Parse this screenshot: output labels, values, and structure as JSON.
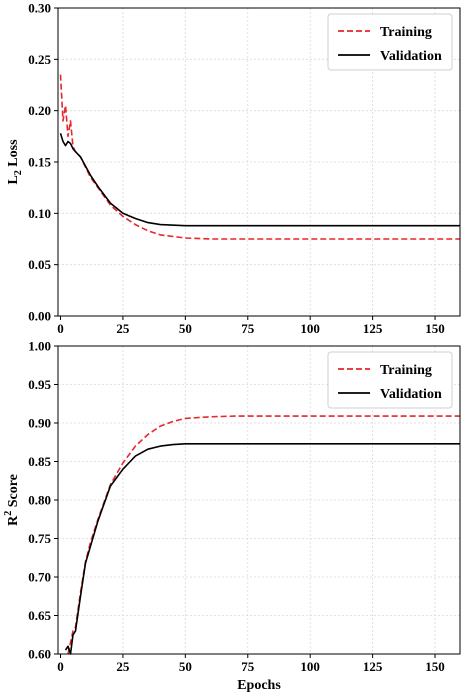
{
  "chart_data": [
    {
      "type": "line",
      "title": "",
      "xlabel": "",
      "ylabel_main": "L",
      "ylabel_sub": "2",
      "ylabel_rest": " Loss",
      "xlim": [
        -1,
        160
      ],
      "ylim": [
        0.0,
        0.3
      ],
      "xticks": [
        0,
        25,
        50,
        75,
        100,
        125,
        150
      ],
      "xtick_labels": [
        "0",
        "25",
        "50",
        "75",
        "100",
        "125",
        "150"
      ],
      "yticks": [
        0.0,
        0.05,
        0.1,
        0.15,
        0.2,
        0.25,
        0.3
      ],
      "ytick_labels": [
        "0.00",
        "0.05",
        "0.10",
        "0.15",
        "0.20",
        "0.25",
        "0.30"
      ],
      "grid": true,
      "legend_position": "top-right",
      "series": [
        {
          "name": "Training",
          "color": "#e8262b",
          "style": "dashed",
          "x": [
            0,
            1,
            2,
            3,
            4,
            5,
            6,
            8,
            10,
            12,
            15,
            20,
            25,
            30,
            35,
            40,
            50,
            60,
            70,
            100,
            160
          ],
          "y": [
            0.235,
            0.19,
            0.205,
            0.175,
            0.19,
            0.165,
            0.16,
            0.155,
            0.145,
            0.135,
            0.125,
            0.108,
            0.097,
            0.089,
            0.083,
            0.079,
            0.076,
            0.075,
            0.075,
            0.075,
            0.075
          ]
        },
        {
          "name": "Validation",
          "color": "#000000",
          "style": "solid",
          "x": [
            0,
            1,
            2,
            3,
            4,
            5,
            6,
            8,
            10,
            12,
            15,
            20,
            25,
            30,
            35,
            40,
            50,
            60,
            70,
            100,
            160
          ],
          "y": [
            0.178,
            0.17,
            0.166,
            0.17,
            0.168,
            0.163,
            0.16,
            0.155,
            0.146,
            0.137,
            0.126,
            0.11,
            0.1,
            0.095,
            0.091,
            0.089,
            0.088,
            0.088,
            0.088,
            0.088,
            0.088
          ]
        }
      ]
    },
    {
      "type": "line",
      "title": "",
      "xlabel": "Epochs",
      "ylabel_main": "R",
      "ylabel_sup": "2",
      "ylabel_rest": " Score",
      "xlim": [
        -1,
        160
      ],
      "ylim": [
        0.6,
        1.0
      ],
      "xticks": [
        0,
        25,
        50,
        75,
        100,
        125,
        150
      ],
      "xtick_labels": [
        "0",
        "25",
        "50",
        "75",
        "100",
        "125",
        "150"
      ],
      "yticks": [
        0.6,
        0.65,
        0.7,
        0.75,
        0.8,
        0.85,
        0.9,
        0.95,
        1.0
      ],
      "ytick_labels": [
        "0.60",
        "0.65",
        "0.70",
        "0.75",
        "0.80",
        "0.85",
        "0.90",
        "0.95",
        "1.00"
      ],
      "grid": true,
      "legend_position": "top-right",
      "series": [
        {
          "name": "Training",
          "color": "#e8262b",
          "style": "dashed",
          "x": [
            3,
            4,
            5,
            6,
            8,
            10,
            12,
            15,
            20,
            25,
            30,
            35,
            40,
            45,
            50,
            60,
            70,
            100,
            160
          ],
          "y": [
            0.6,
            0.615,
            0.63,
            0.635,
            0.68,
            0.72,
            0.745,
            0.775,
            0.82,
            0.848,
            0.87,
            0.885,
            0.896,
            0.902,
            0.906,
            0.908,
            0.909,
            0.909,
            0.909
          ]
        },
        {
          "name": "Validation",
          "color": "#000000",
          "style": "solid",
          "x": [
            2,
            3,
            4,
            5,
            6,
            8,
            10,
            12,
            15,
            20,
            25,
            30,
            35,
            40,
            45,
            50,
            60,
            100,
            160
          ],
          "y": [
            0.605,
            0.61,
            0.6,
            0.625,
            0.63,
            0.675,
            0.718,
            0.74,
            0.773,
            0.818,
            0.84,
            0.857,
            0.866,
            0.87,
            0.872,
            0.873,
            0.873,
            0.873,
            0.873
          ]
        }
      ]
    }
  ]
}
